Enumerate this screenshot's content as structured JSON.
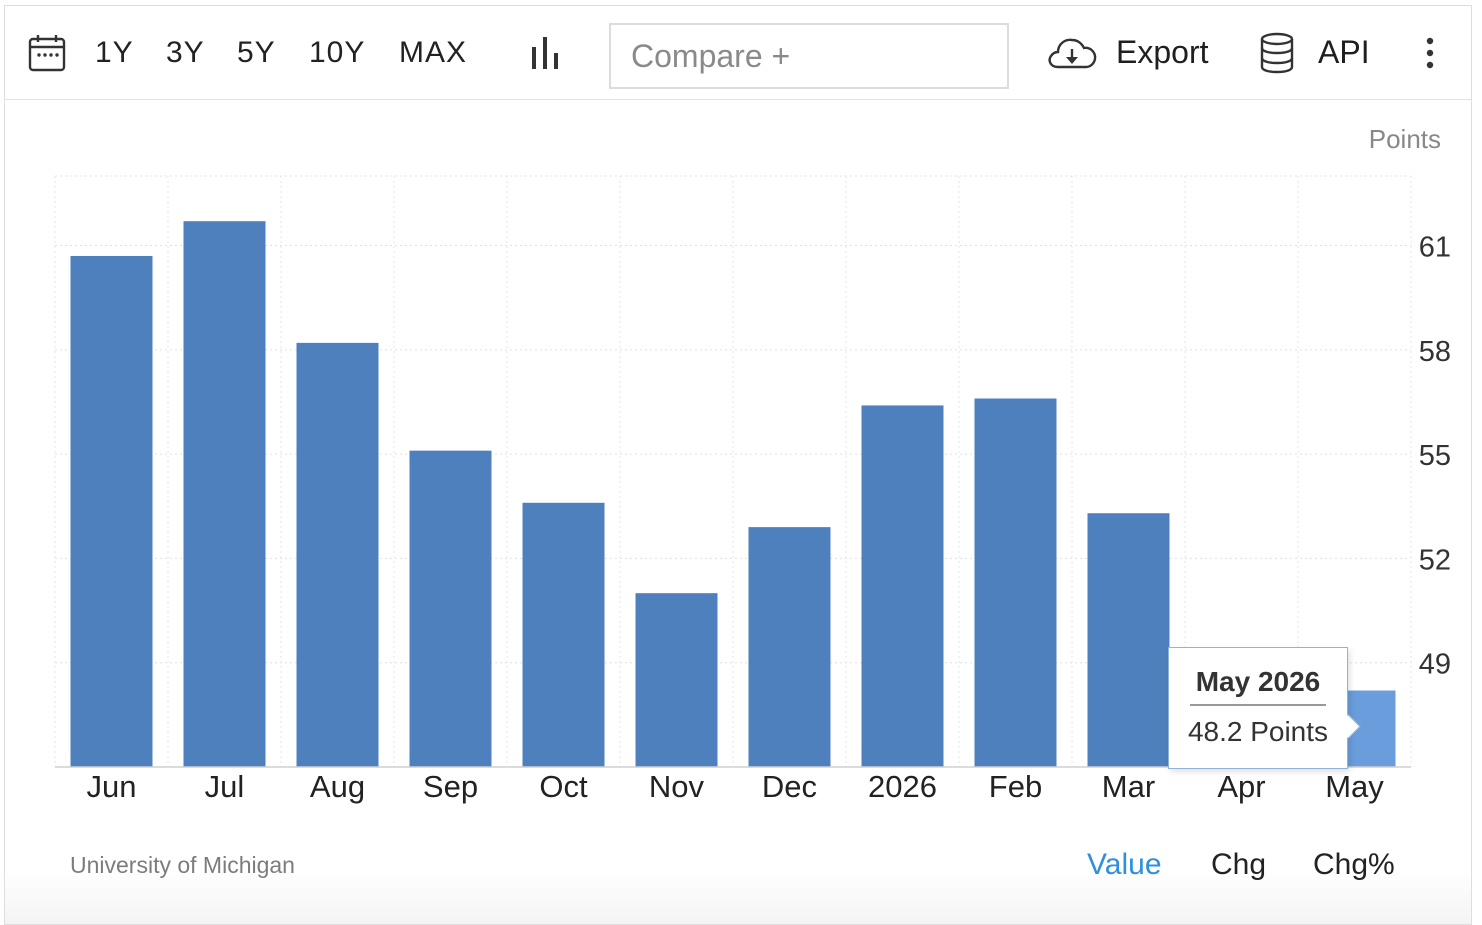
{
  "toolbar": {
    "ranges": [
      "1Y",
      "3Y",
      "5Y",
      "10Y",
      "MAX"
    ],
    "compare_placeholder": "Compare +",
    "export_label": "Export",
    "api_label": "API",
    "icons": {
      "calendar": "calendar-icon",
      "chart_type": "bar-chart-icon",
      "export": "cloud-download-icon",
      "api": "database-icon",
      "more": "more-vertical-icon"
    }
  },
  "chart_data": {
    "type": "bar",
    "unit_label": "Points",
    "categories": [
      "Jun",
      "Jul",
      "Aug",
      "Sep",
      "Oct",
      "Nov",
      "Dec",
      "2026",
      "Feb",
      "Mar",
      "Apr",
      "May"
    ],
    "values": [
      60.7,
      61.7,
      58.2,
      55.1,
      53.6,
      51.0,
      52.9,
      56.4,
      56.6,
      53.3,
      null,
      48.2
    ],
    "yticks": [
      49,
      52,
      55,
      58,
      61
    ],
    "ylim": [
      46,
      63
    ],
    "grid": true,
    "bar_color": "#4e80bd",
    "highlight_color": "#6a9ddb",
    "highlight_index": 11,
    "tooltip": {
      "title": "May 2026",
      "value": "48.2 Points"
    }
  },
  "footer": {
    "source": "University of Michigan",
    "tabs": [
      "Value",
      "Chg",
      "Chg%"
    ],
    "active_tab": "Value",
    "active_color": "#2e8fe0"
  }
}
